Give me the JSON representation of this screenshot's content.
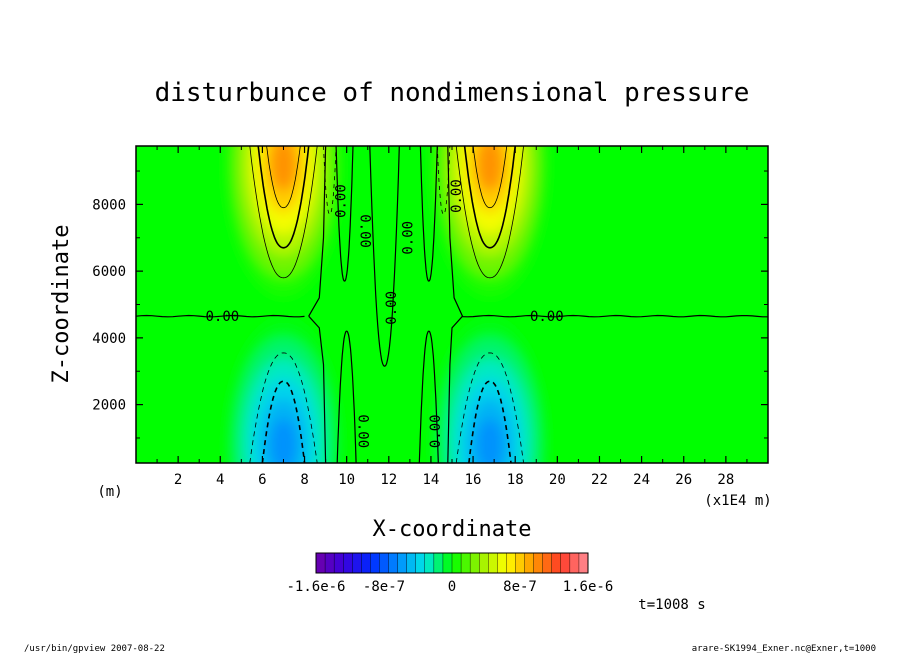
{
  "chart_data": {
    "type": "heatmap",
    "title": "disturbunce of nondimensional pressure",
    "xlabel": "X-coordinate",
    "ylabel": "Z-coordinate",
    "x_unit_left": "(m)",
    "x_unit_right": "(x1E4 m)",
    "xlim": [
      0,
      30
    ],
    "ylim": [
      250,
      9750
    ],
    "x_ticks": [
      2,
      4,
      6,
      8,
      10,
      12,
      14,
      16,
      18,
      20,
      22,
      24,
      26,
      28
    ],
    "y_ticks": [
      2000,
      4000,
      6000,
      8000
    ],
    "contour_labels": [
      "0.00",
      "0.00",
      "0.00",
      "0.00",
      "0.00",
      "0.00",
      "0.00",
      "0.00",
      "0.00",
      "0.00"
    ],
    "colorbar": {
      "min": -1.6e-06,
      "max": 1.6e-06,
      "levels": 30,
      "tick_labels": [
        "-1.6e-6",
        "-8e-7",
        "0",
        "8e-7",
        "1.6e-6"
      ],
      "tick_values": [
        -1.6e-06,
        -8e-07,
        0,
        8e-07,
        1.6e-06
      ]
    },
    "features": [
      {
        "sign": "positive",
        "x": 7.0,
        "z": 9200,
        "peak": 1.1e-06
      },
      {
        "sign": "positive",
        "x": 16.8,
        "z": 9200,
        "peak": 1.1e-06
      },
      {
        "sign": "negative",
        "x": 7.0,
        "z": 800,
        "peak": -7e-07
      },
      {
        "sign": "negative",
        "x": 16.8,
        "z": 800,
        "peak": -7e-07
      }
    ],
    "time_label": "t=1008 s"
  },
  "footer": {
    "left": "/usr/bin/gpview   2007-08-22",
    "right": "arare-SK1994_Exner.nc@Exner,t=1000"
  }
}
